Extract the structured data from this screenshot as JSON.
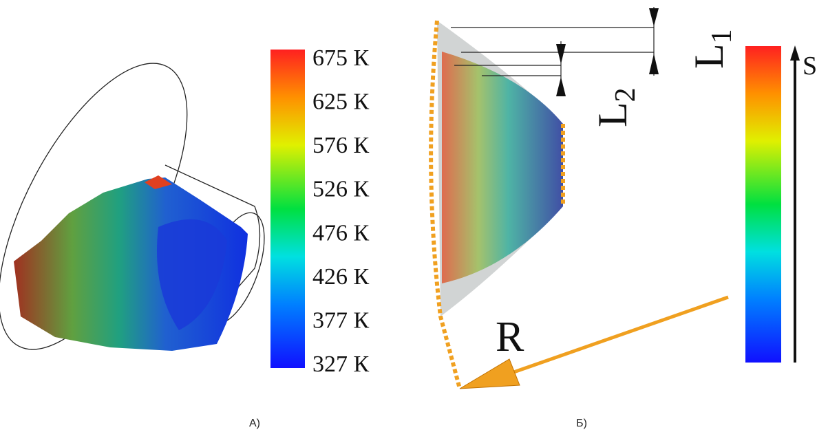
{
  "panel_a": {
    "caption": "А)",
    "colorbar_labels": [
      "675 К",
      "625 К",
      "576 К",
      "526 К",
      "476 К",
      "426 К",
      "377 К",
      "327 К"
    ]
  },
  "panel_b": {
    "caption": "Б)",
    "l1": {
      "letter": "L",
      "sub": "1"
    },
    "l2": {
      "letter": "L",
      "sub": "2"
    },
    "r_label": "R",
    "s_label": "S"
  }
}
